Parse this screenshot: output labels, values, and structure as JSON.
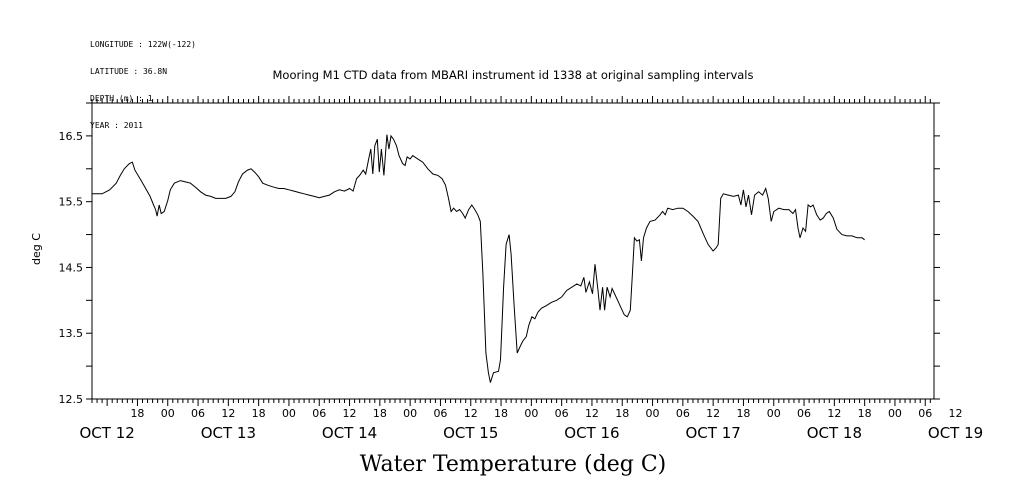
{
  "meta_lines": [
    "LONGITUDE : 122W(-122)",
    "LATITUDE : 36.8N",
    "DEPTH (m) : 1",
    "YEAR : 2011"
  ],
  "chart_data": {
    "type": "line",
    "title": "Mooring M1 CTD data from MBARI instrument id 1338 at original sampling intervals",
    "xlabel": "Water Temperature (deg C)",
    "ylabel": "deg C",
    "ylim": [
      12.5,
      17.0
    ],
    "yticks": [
      "12.5",
      "13.5",
      "14.5",
      "15.5",
      "16.5"
    ],
    "x_units": "hours since 2011-10-12 00:00",
    "xlim": [
      9,
      180
    ],
    "hour_tick_labels": [
      {
        "h": 18,
        "t": "18"
      },
      {
        "h": 24,
        "t": "00"
      },
      {
        "h": 30,
        "t": "06"
      },
      {
        "h": 36,
        "t": "12"
      },
      {
        "h": 42,
        "t": "18"
      },
      {
        "h": 48,
        "t": "00"
      },
      {
        "h": 54,
        "t": "06"
      },
      {
        "h": 60,
        "t": "12"
      },
      {
        "h": 66,
        "t": "18"
      },
      {
        "h": 72,
        "t": "00"
      },
      {
        "h": 78,
        "t": "06"
      },
      {
        "h": 84,
        "t": "12"
      },
      {
        "h": 90,
        "t": "18"
      },
      {
        "h": 96,
        "t": "00"
      },
      {
        "h": 102,
        "t": "06"
      },
      {
        "h": 108,
        "t": "12"
      },
      {
        "h": 114,
        "t": "18"
      },
      {
        "h": 120,
        "t": "00"
      },
      {
        "h": 126,
        "t": "06"
      },
      {
        "h": 132,
        "t": "12"
      },
      {
        "h": 138,
        "t": "18"
      },
      {
        "h": 144,
        "t": "00"
      },
      {
        "h": 150,
        "t": "06"
      },
      {
        "h": 156,
        "t": "12"
      },
      {
        "h": 162,
        "t": "18"
      },
      {
        "h": 168,
        "t": "00"
      },
      {
        "h": 174,
        "t": "06"
      },
      {
        "h": 180,
        "t": "12"
      }
    ],
    "date_labels": [
      {
        "h": 12,
        "t": "OCT 12"
      },
      {
        "h": 36,
        "t": "OCT 13"
      },
      {
        "h": 60,
        "t": "OCT 14"
      },
      {
        "h": 84,
        "t": "OCT 15"
      },
      {
        "h": 108,
        "t": "OCT 16"
      },
      {
        "h": 132,
        "t": "OCT 17"
      },
      {
        "h": 156,
        "t": "OCT 18"
      },
      {
        "h": 180,
        "t": "OCT 19"
      }
    ],
    "series": [
      {
        "values": [
          [
            9.0,
            15.62
          ],
          [
            11.0,
            15.62
          ],
          [
            12.5,
            15.68
          ],
          [
            13.8,
            15.78
          ],
          [
            14.6,
            15.9
          ],
          [
            15.4,
            16.0
          ],
          [
            16.4,
            16.08
          ],
          [
            17.0,
            16.1
          ],
          [
            17.5,
            15.98
          ],
          [
            18.5,
            15.85
          ],
          [
            19.5,
            15.72
          ],
          [
            20.5,
            15.58
          ],
          [
            21.2,
            15.45
          ],
          [
            21.6,
            15.38
          ],
          [
            21.9,
            15.28
          ],
          [
            22.3,
            15.45
          ],
          [
            22.7,
            15.32
          ],
          [
            23.3,
            15.35
          ],
          [
            24.0,
            15.52
          ],
          [
            24.5,
            15.68
          ],
          [
            25.3,
            15.78
          ],
          [
            26.5,
            15.82
          ],
          [
            27.5,
            15.8
          ],
          [
            28.5,
            15.78
          ],
          [
            29.5,
            15.72
          ],
          [
            30.5,
            15.65
          ],
          [
            31.5,
            15.6
          ],
          [
            32.5,
            15.58
          ],
          [
            33.5,
            15.55
          ],
          [
            34.5,
            15.55
          ],
          [
            35.5,
            15.55
          ],
          [
            36.5,
            15.58
          ],
          [
            37.3,
            15.65
          ],
          [
            38.0,
            15.8
          ],
          [
            38.8,
            15.92
          ],
          [
            39.8,
            15.98
          ],
          [
            40.5,
            16.0
          ],
          [
            41.2,
            15.95
          ],
          [
            42.0,
            15.88
          ],
          [
            42.8,
            15.78
          ],
          [
            43.8,
            15.75
          ],
          [
            45.0,
            15.72
          ],
          [
            46.0,
            15.7
          ],
          [
            47.0,
            15.7
          ],
          [
            48.0,
            15.68
          ],
          [
            49.0,
            15.66
          ],
          [
            50.0,
            15.64
          ],
          [
            51.0,
            15.62
          ],
          [
            52.0,
            15.6
          ],
          [
            53.0,
            15.58
          ],
          [
            54.0,
            15.56
          ],
          [
            55.0,
            15.58
          ],
          [
            56.0,
            15.6
          ],
          [
            57.0,
            15.65
          ],
          [
            58.0,
            15.68
          ],
          [
            59.0,
            15.66
          ],
          [
            60.0,
            15.7
          ],
          [
            60.7,
            15.66
          ],
          [
            61.4,
            15.85
          ],
          [
            62.0,
            15.9
          ],
          [
            62.7,
            15.98
          ],
          [
            63.2,
            15.92
          ],
          [
            63.8,
            16.15
          ],
          [
            64.2,
            16.3
          ],
          [
            64.6,
            15.92
          ],
          [
            65.0,
            16.35
          ],
          [
            65.5,
            16.45
          ],
          [
            65.9,
            15.95
          ],
          [
            66.3,
            16.3
          ],
          [
            66.8,
            15.9
          ],
          [
            67.4,
            16.52
          ],
          [
            67.8,
            16.3
          ],
          [
            68.2,
            16.5
          ],
          [
            68.7,
            16.45
          ],
          [
            69.3,
            16.35
          ],
          [
            69.8,
            16.2
          ],
          [
            70.5,
            16.08
          ],
          [
            71.0,
            16.05
          ],
          [
            71.4,
            16.18
          ],
          [
            72.0,
            16.15
          ],
          [
            72.5,
            16.2
          ],
          [
            73.5,
            16.15
          ],
          [
            74.5,
            16.1
          ],
          [
            75.5,
            16.0
          ],
          [
            76.5,
            15.92
          ],
          [
            77.5,
            15.9
          ],
          [
            78.3,
            15.85
          ],
          [
            79.0,
            15.75
          ],
          [
            79.6,
            15.55
          ],
          [
            80.1,
            15.35
          ],
          [
            80.6,
            15.4
          ],
          [
            81.2,
            15.35
          ],
          [
            81.8,
            15.38
          ],
          [
            82.4,
            15.32
          ],
          [
            82.9,
            15.25
          ],
          [
            83.6,
            15.38
          ],
          [
            84.2,
            15.45
          ],
          [
            84.8,
            15.38
          ],
          [
            85.4,
            15.3
          ],
          [
            85.9,
            15.2
          ],
          [
            86.4,
            14.4
          ],
          [
            87.0,
            13.2
          ],
          [
            87.5,
            12.9
          ],
          [
            87.9,
            12.75
          ],
          [
            88.5,
            12.9
          ],
          [
            89.5,
            12.92
          ],
          [
            89.9,
            13.1
          ],
          [
            90.5,
            14.2
          ],
          [
            91.0,
            14.85
          ],
          [
            91.6,
            15.0
          ],
          [
            92.0,
            14.7
          ],
          [
            92.6,
            13.9
          ],
          [
            93.2,
            13.2
          ],
          [
            93.8,
            13.3
          ],
          [
            94.3,
            13.38
          ],
          [
            95.0,
            13.45
          ],
          [
            95.5,
            13.62
          ],
          [
            96.1,
            13.75
          ],
          [
            96.7,
            13.72
          ],
          [
            97.3,
            13.82
          ],
          [
            98.0,
            13.88
          ],
          [
            99.0,
            13.92
          ],
          [
            100.0,
            13.97
          ],
          [
            101.0,
            14.0
          ],
          [
            102.0,
            14.05
          ],
          [
            103.0,
            14.15
          ],
          [
            104.0,
            14.2
          ],
          [
            105.0,
            14.25
          ],
          [
            105.8,
            14.22
          ],
          [
            106.4,
            14.35
          ],
          [
            106.8,
            14.12
          ],
          [
            107.5,
            14.28
          ],
          [
            108.1,
            14.1
          ],
          [
            108.6,
            14.55
          ],
          [
            109.2,
            14.15
          ],
          [
            109.6,
            13.85
          ],
          [
            110.1,
            14.2
          ],
          [
            110.5,
            13.85
          ],
          [
            111.0,
            14.2
          ],
          [
            111.6,
            14.05
          ],
          [
            112.0,
            14.18
          ],
          [
            112.6,
            14.08
          ],
          [
            113.2,
            13.98
          ],
          [
            113.8,
            13.88
          ],
          [
            114.4,
            13.78
          ],
          [
            115.0,
            13.75
          ],
          [
            115.6,
            13.85
          ],
          [
            116.0,
            14.4
          ],
          [
            116.4,
            14.95
          ],
          [
            116.9,
            14.9
          ],
          [
            117.4,
            14.92
          ],
          [
            117.8,
            14.6
          ],
          [
            118.2,
            14.95
          ],
          [
            118.8,
            15.1
          ],
          [
            119.5,
            15.2
          ],
          [
            120.5,
            15.22
          ],
          [
            121.5,
            15.3
          ],
          [
            122.0,
            15.35
          ],
          [
            122.5,
            15.3
          ],
          [
            123.0,
            15.4
          ],
          [
            124.0,
            15.38
          ],
          [
            125.0,
            15.4
          ],
          [
            126.0,
            15.4
          ],
          [
            127.0,
            15.35
          ],
          [
            128.0,
            15.28
          ],
          [
            129.0,
            15.2
          ],
          [
            130.0,
            15.02
          ],
          [
            131.0,
            14.85
          ],
          [
            132.0,
            14.75
          ],
          [
            132.6,
            14.8
          ],
          [
            133.0,
            14.85
          ],
          [
            133.5,
            15.55
          ],
          [
            134.0,
            15.62
          ],
          [
            135.0,
            15.6
          ],
          [
            136.0,
            15.58
          ],
          [
            137.0,
            15.6
          ],
          [
            137.5,
            15.45
          ],
          [
            138.0,
            15.68
          ],
          [
            138.5,
            15.42
          ],
          [
            139.0,
            15.6
          ],
          [
            139.6,
            15.3
          ],
          [
            140.2,
            15.6
          ],
          [
            141.0,
            15.65
          ],
          [
            141.8,
            15.6
          ],
          [
            142.4,
            15.7
          ],
          [
            142.9,
            15.55
          ],
          [
            143.5,
            15.2
          ],
          [
            144.0,
            15.35
          ],
          [
            145.0,
            15.4
          ],
          [
            146.0,
            15.38
          ],
          [
            147.0,
            15.38
          ],
          [
            147.8,
            15.32
          ],
          [
            148.3,
            15.38
          ],
          [
            148.8,
            15.1
          ],
          [
            149.2,
            14.95
          ],
          [
            149.8,
            15.1
          ],
          [
            150.3,
            15.05
          ],
          [
            150.8,
            15.45
          ],
          [
            151.3,
            15.42
          ],
          [
            151.8,
            15.45
          ],
          [
            152.5,
            15.3
          ],
          [
            153.2,
            15.22
          ],
          [
            153.8,
            15.25
          ],
          [
            154.4,
            15.32
          ],
          [
            155.0,
            15.35
          ],
          [
            155.8,
            15.25
          ],
          [
            156.5,
            15.08
          ],
          [
            157.5,
            15.0
          ],
          [
            158.5,
            14.98
          ],
          [
            159.5,
            14.98
          ],
          [
            160.5,
            14.95
          ],
          [
            161.5,
            14.95
          ],
          [
            162.0,
            14.92
          ]
        ]
      }
    ]
  }
}
